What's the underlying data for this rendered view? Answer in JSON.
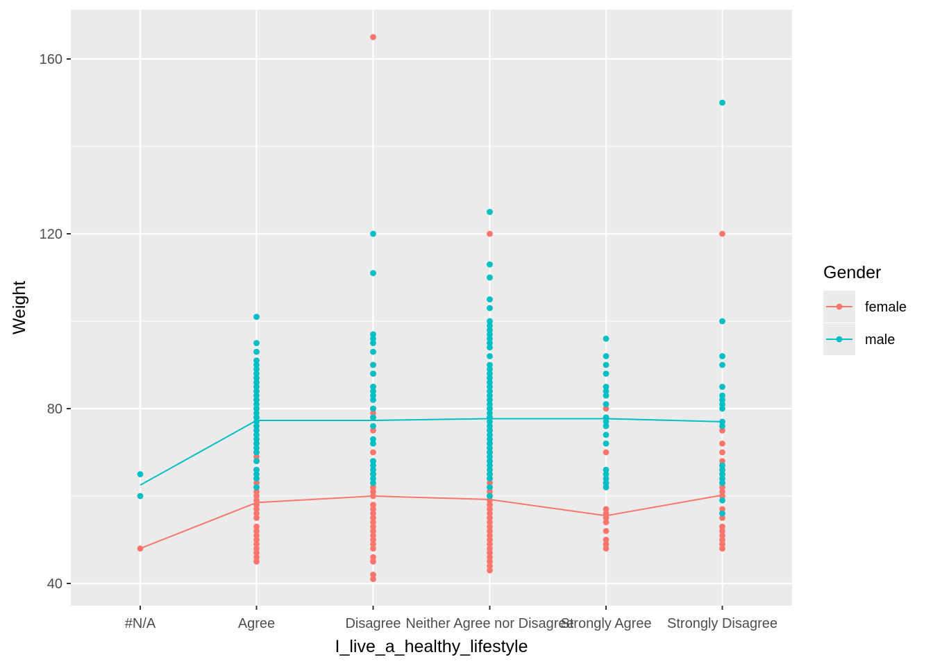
{
  "chart_data": {
    "type": "scatter",
    "title": "",
    "xlabel": "I_live_a_healthy_lifestyle",
    "ylabel": "Weight",
    "categories": [
      "#N/A",
      "Agree",
      "Disagree",
      "Neither Agree nor Disagree",
      "Strongly Agree",
      "Strongly Disagree"
    ],
    "ylim": [
      35,
      170
    ],
    "yticks": [
      40,
      80,
      120,
      160
    ],
    "grid": true,
    "legend": {
      "title": "Gender",
      "position": "right"
    },
    "series": [
      {
        "name": "female",
        "color": "#F8766D",
        "points": {
          "#N/A": [
            48
          ],
          "Agree": [
            45,
            46,
            47,
            48,
            49,
            50,
            51,
            52,
            53,
            55,
            56,
            57,
            58,
            59,
            60,
            61,
            62,
            63,
            64,
            66,
            68,
            69,
            70,
            72,
            74,
            76,
            78,
            80,
            82,
            84,
            85,
            86
          ],
          "Disagree": [
            41,
            42,
            45,
            46,
            48,
            49,
            50,
            51,
            52,
            53,
            54,
            55,
            56,
            57,
            58,
            60,
            61,
            62,
            65,
            68,
            70,
            75,
            78,
            79,
            80,
            85,
            88,
            90,
            165
          ],
          "Neither Agree nor Disagree": [
            43,
            44,
            45,
            46,
            47,
            48,
            49,
            50,
            51,
            52,
            53,
            54,
            55,
            56,
            57,
            58,
            59,
            60,
            61,
            62,
            63,
            64,
            65,
            68,
            70,
            72,
            75,
            78,
            80,
            120
          ],
          "Strongly Agree": [
            48,
            49,
            50,
            52,
            54,
            55,
            56,
            57,
            62,
            63,
            70,
            80
          ],
          "Strongly Disagree": [
            48,
            49,
            50,
            51,
            52,
            53,
            55,
            56,
            57,
            60,
            61,
            62,
            63,
            64,
            65,
            66,
            68,
            70,
            72,
            75,
            120
          ]
        },
        "line": [
          48,
          58.5,
          60,
          59.2,
          55.5,
          60.2
        ]
      },
      {
        "name": "male",
        "color": "#00BFC4",
        "points": {
          "#N/A": [
            60,
            65
          ],
          "Agree": [
            62,
            64,
            65,
            66,
            68,
            70,
            71,
            72,
            73,
            74,
            75,
            76,
            77,
            78,
            79,
            80,
            81,
            82,
            83,
            84,
            85,
            86,
            87,
            88,
            89,
            90,
            91,
            93,
            95,
            101
          ],
          "Disagree": [
            63,
            64,
            65,
            66,
            67,
            68,
            72,
            73,
            76,
            78,
            80,
            82,
            83,
            84,
            85,
            88,
            90,
            93,
            95,
            96,
            97,
            111,
            120
          ],
          "Neither Agree nor Disagree": [
            60,
            62,
            64,
            65,
            66,
            67,
            68,
            69,
            70,
            71,
            72,
            73,
            74,
            75,
            76,
            77,
            78,
            79,
            80,
            81,
            82,
            83,
            84,
            85,
            86,
            87,
            88,
            89,
            90,
            92,
            94,
            95,
            96,
            97,
            98,
            99,
            100,
            103,
            105,
            110,
            113,
            125
          ],
          "Strongly Agree": [
            62,
            63,
            64,
            65,
            66,
            72,
            74,
            76,
            77,
            78,
            81,
            83,
            84,
            85,
            88,
            90,
            92,
            96
          ],
          "Strongly Disagree": [
            56,
            59,
            63,
            64,
            65,
            66,
            67,
            76,
            77,
            80,
            81,
            82,
            83,
            85,
            90,
            92,
            100,
            150
          ]
        },
        "line": [
          62.5,
          77.3,
          77.3,
          77.7,
          77.7,
          77.0
        ]
      }
    ]
  }
}
